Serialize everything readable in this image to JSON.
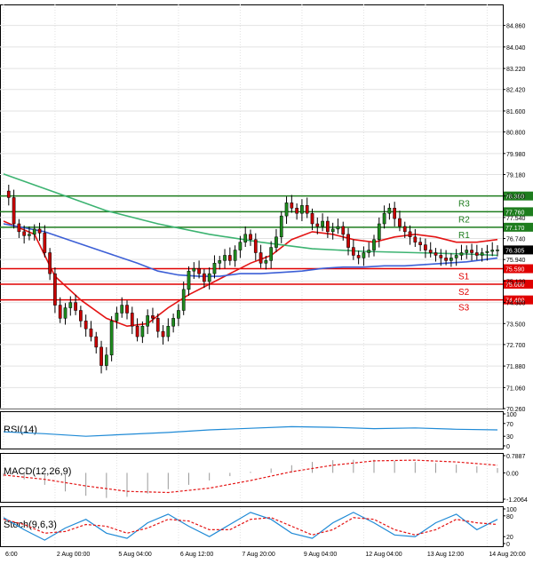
{
  "chart_data": {
    "type": "candlestick",
    "price_axis": {
      "range": [
        70.26,
        85.66
      ],
      "ticks": [
        "84.860",
        "84.040",
        "83.220",
        "82.420",
        "81.600",
        "80.800",
        "79.980",
        "79.180",
        "78.360",
        "77.540",
        "76.740",
        "75.940",
        "75.120",
        "74.300",
        "73.500",
        "72.700",
        "71.880",
        "71.060",
        "70.260"
      ]
    },
    "time_axis": {
      "labels": [
        {
          "text": "6:00",
          "t": 0
        },
        {
          "text": "2 Aug 00:00",
          "t": 10
        },
        {
          "text": "5 Aug 04:00",
          "t": 22
        },
        {
          "text": "6 Aug 12:00",
          "t": 34
        },
        {
          "text": "7 Aug 20:00",
          "t": 46
        },
        {
          "text": "9 Aug 04:00",
          "t": 58
        },
        {
          "text": "12 Aug 04:00",
          "t": 70
        },
        {
          "text": "13 Aug 12:00",
          "t": 82
        },
        {
          "text": "14 Aug 20:00",
          "t": 94
        }
      ],
      "count": 97
    },
    "current_price": {
      "label": "76.305",
      "value": 76.305
    },
    "levels": [
      {
        "name": "R3",
        "value": 78.36,
        "label": "78.360",
        "color": "#1e7d1e"
      },
      {
        "name": "R2",
        "value": 77.76,
        "label": "77.760",
        "color": "#1e7d1e"
      },
      {
        "name": "R1",
        "value": 77.17,
        "label": "77.170",
        "color": "#1e7d1e"
      },
      {
        "name": "S1",
        "value": 75.59,
        "label": "75.590",
        "color": "#e00000"
      },
      {
        "name": "S2",
        "value": 75.0,
        "label": "75.000",
        "color": "#e00000"
      },
      {
        "name": "S3",
        "value": 74.4,
        "label": "74.400",
        "color": "#e00000"
      }
    ],
    "key_points": [
      [
        0,
        78.55
      ],
      [
        1,
        78.3
      ],
      [
        2,
        77.3
      ],
      [
        3,
        77.0
      ],
      [
        4,
        76.85
      ],
      [
        5,
        76.9
      ],
      [
        6,
        77.1
      ],
      [
        7,
        76.95
      ],
      [
        8,
        76.2
      ],
      [
        9,
        75.4
      ],
      [
        10,
        74.2
      ],
      [
        11,
        73.7
      ],
      [
        12,
        74.1
      ],
      [
        13,
        74.3
      ],
      [
        14,
        74.0
      ],
      [
        15,
        73.6
      ],
      [
        16,
        73.3
      ],
      [
        17,
        73.0
      ],
      [
        18,
        72.6
      ],
      [
        19,
        71.9
      ],
      [
        20,
        72.3
      ],
      [
        21,
        73.6
      ],
      [
        22,
        73.9
      ],
      [
        23,
        74.2
      ],
      [
        24,
        73.9
      ],
      [
        25,
        73.4
      ],
      [
        26,
        73.0
      ],
      [
        27,
        73.4
      ],
      [
        28,
        73.8
      ],
      [
        29,
        73.7
      ],
      [
        30,
        73.2
      ],
      [
        31,
        73.0
      ],
      [
        32,
        73.4
      ],
      [
        33,
        73.7
      ],
      [
        34,
        74.0
      ],
      [
        35,
        74.8
      ],
      [
        36,
        75.5
      ],
      [
        37,
        75.6
      ],
      [
        38,
        75.4
      ],
      [
        39,
        75.1
      ],
      [
        40,
        75.4
      ],
      [
        41,
        75.8
      ],
      [
        42,
        75.9
      ],
      [
        43,
        76.1
      ],
      [
        44,
        75.9
      ],
      [
        45,
        76.3
      ],
      [
        46,
        76.6
      ],
      [
        47,
        76.9
      ],
      [
        48,
        76.7
      ],
      [
        49,
        76.2
      ],
      [
        50,
        75.8
      ],
      [
        51,
        75.9
      ],
      [
        52,
        76.4
      ],
      [
        53,
        76.8
      ],
      [
        54,
        77.6
      ],
      [
        55,
        78.1
      ],
      [
        56,
        77.9
      ],
      [
        57,
        77.7
      ],
      [
        58,
        78.0
      ],
      [
        59,
        77.7
      ],
      [
        60,
        77.3
      ],
      [
        61,
        77.2
      ],
      [
        62,
        77.4
      ],
      [
        63,
        77.0
      ],
      [
        64,
        77.1
      ],
      [
        65,
        77.2
      ],
      [
        66,
        76.9
      ],
      [
        67,
        76.4
      ],
      [
        68,
        76.1
      ],
      [
        69,
        76.0
      ],
      [
        70,
        76.2
      ],
      [
        71,
        76.3
      ],
      [
        72,
        76.7
      ],
      [
        73,
        77.3
      ],
      [
        74,
        77.7
      ],
      [
        75,
        77.9
      ],
      [
        76,
        77.5
      ],
      [
        77,
        77.2
      ],
      [
        78,
        77.0
      ],
      [
        79,
        76.8
      ],
      [
        80,
        76.6
      ],
      [
        81,
        76.5
      ],
      [
        82,
        76.3
      ],
      [
        83,
        76.2
      ],
      [
        84,
        76.1
      ],
      [
        85,
        76.0
      ],
      [
        86,
        75.9
      ],
      [
        87,
        76.0
      ],
      [
        88,
        76.1
      ],
      [
        89,
        76.2
      ],
      [
        90,
        76.3
      ],
      [
        91,
        76.2
      ],
      [
        92,
        76.1
      ],
      [
        93,
        76.2
      ],
      [
        94,
        76.25
      ],
      [
        95,
        76.3
      ],
      [
        96,
        76.305
      ]
    ],
    "overlays": [
      {
        "name": "MA-red",
        "color": "#e41414",
        "points": [
          [
            0,
            77.4
          ],
          [
            6,
            76.9
          ],
          [
            10,
            75.3
          ],
          [
            15,
            74.4
          ],
          [
            20,
            73.7
          ],
          [
            24,
            73.4
          ],
          [
            28,
            73.5
          ],
          [
            32,
            74.1
          ],
          [
            36,
            74.6
          ],
          [
            40,
            75.0
          ],
          [
            44,
            75.4
          ],
          [
            48,
            75.8
          ],
          [
            52,
            76.1
          ],
          [
            56,
            76.7
          ],
          [
            60,
            77.0
          ],
          [
            64,
            76.9
          ],
          [
            68,
            76.7
          ],
          [
            72,
            76.6
          ],
          [
            76,
            76.8
          ],
          [
            80,
            76.9
          ],
          [
            84,
            76.8
          ],
          [
            88,
            76.6
          ],
          [
            92,
            76.6
          ],
          [
            96,
            76.7
          ]
        ]
      },
      {
        "name": "MA-blue",
        "color": "#3c5fd6",
        "points": [
          [
            0,
            77.3
          ],
          [
            8,
            77.0
          ],
          [
            14,
            76.6
          ],
          [
            20,
            76.2
          ],
          [
            26,
            75.8
          ],
          [
            30,
            75.5
          ],
          [
            34,
            75.35
          ],
          [
            38,
            75.3
          ],
          [
            42,
            75.3
          ],
          [
            46,
            75.4
          ],
          [
            50,
            75.4
          ],
          [
            54,
            75.45
          ],
          [
            58,
            75.5
          ],
          [
            62,
            75.6
          ],
          [
            66,
            75.65
          ],
          [
            70,
            75.65
          ],
          [
            74,
            75.7
          ],
          [
            78,
            75.7
          ],
          [
            82,
            75.75
          ],
          [
            86,
            75.8
          ],
          [
            90,
            75.85
          ],
          [
            94,
            75.95
          ],
          [
            96,
            76.0
          ]
        ]
      },
      {
        "name": "MA-green",
        "color": "#3cb371",
        "points": [
          [
            0,
            79.2
          ],
          [
            10,
            78.5
          ],
          [
            20,
            77.8
          ],
          [
            30,
            77.3
          ],
          [
            40,
            76.9
          ],
          [
            50,
            76.6
          ],
          [
            60,
            76.35
          ],
          [
            70,
            76.25
          ],
          [
            80,
            76.2
          ],
          [
            90,
            76.15
          ],
          [
            96,
            76.1
          ]
        ]
      }
    ],
    "indicators": [
      {
        "name": "RSI(14)",
        "ticks": [
          "100",
          "70",
          "30",
          "0"
        ],
        "range": [
          0,
          100
        ],
        "points": [
          [
            0,
            44
          ],
          [
            8,
            38
          ],
          [
            16,
            30
          ],
          [
            24,
            36
          ],
          [
            32,
            42
          ],
          [
            40,
            50
          ],
          [
            48,
            55
          ],
          [
            56,
            60
          ],
          [
            64,
            58
          ],
          [
            72,
            54
          ],
          [
            80,
            56
          ],
          [
            88,
            52
          ],
          [
            96,
            50
          ]
        ]
      },
      {
        "name": "MACD(12,26,9)",
        "ticks": [
          "0.7887",
          "0.00",
          "-1.2064"
        ],
        "range": [
          -1.2064,
          0.7887
        ],
        "histogram": [
          [
            0,
            -0.15
          ],
          [
            4,
            -0.3
          ],
          [
            8,
            -0.55
          ],
          [
            12,
            -0.85
          ],
          [
            16,
            -1.05
          ],
          [
            20,
            -1.15
          ],
          [
            24,
            -1.1
          ],
          [
            28,
            -0.95
          ],
          [
            32,
            -0.75
          ],
          [
            36,
            -0.55
          ],
          [
            40,
            -0.35
          ],
          [
            44,
            -0.15
          ],
          [
            48,
            0.05
          ],
          [
            52,
            0.2
          ],
          [
            56,
            0.35
          ],
          [
            60,
            0.5
          ],
          [
            64,
            0.58
          ],
          [
            68,
            0.6
          ],
          [
            72,
            0.6
          ],
          [
            76,
            0.55
          ],
          [
            80,
            0.5
          ],
          [
            84,
            0.45
          ],
          [
            88,
            0.38
          ],
          [
            92,
            0.3
          ],
          [
            96,
            0.22
          ]
        ],
        "signal": [
          [
            0,
            -0.1
          ],
          [
            8,
            -0.3
          ],
          [
            16,
            -0.6
          ],
          [
            24,
            -0.85
          ],
          [
            32,
            -0.9
          ],
          [
            40,
            -0.7
          ],
          [
            48,
            -0.35
          ],
          [
            56,
            0.05
          ],
          [
            64,
            0.35
          ],
          [
            72,
            0.55
          ],
          [
            80,
            0.58
          ],
          [
            88,
            0.5
          ],
          [
            96,
            0.35
          ]
        ]
      },
      {
        "name": "Stoch(9,6,3)",
        "ticks": [
          "100",
          "80",
          "20",
          "0"
        ],
        "range": [
          0,
          100
        ],
        "k": [
          [
            0,
            75
          ],
          [
            4,
            40
          ],
          [
            8,
            10
          ],
          [
            12,
            45
          ],
          [
            16,
            70
          ],
          [
            20,
            30
          ],
          [
            24,
            15
          ],
          [
            28,
            60
          ],
          [
            32,
            85
          ],
          [
            36,
            50
          ],
          [
            40,
            20
          ],
          [
            44,
            55
          ],
          [
            48,
            90
          ],
          [
            52,
            70
          ],
          [
            56,
            30
          ],
          [
            60,
            15
          ],
          [
            64,
            60
          ],
          [
            68,
            90
          ],
          [
            72,
            60
          ],
          [
            76,
            25
          ],
          [
            80,
            20
          ],
          [
            84,
            60
          ],
          [
            88,
            85
          ],
          [
            92,
            40
          ],
          [
            96,
            70
          ]
        ],
        "d": [
          [
            0,
            70
          ],
          [
            4,
            55
          ],
          [
            8,
            30
          ],
          [
            12,
            35
          ],
          [
            16,
            55
          ],
          [
            20,
            50
          ],
          [
            24,
            30
          ],
          [
            28,
            45
          ],
          [
            32,
            70
          ],
          [
            36,
            65
          ],
          [
            40,
            40
          ],
          [
            44,
            40
          ],
          [
            48,
            70
          ],
          [
            52,
            75
          ],
          [
            56,
            50
          ],
          [
            60,
            25
          ],
          [
            64,
            40
          ],
          [
            68,
            75
          ],
          [
            72,
            70
          ],
          [
            76,
            40
          ],
          [
            80,
            25
          ],
          [
            84,
            40
          ],
          [
            88,
            70
          ],
          [
            92,
            60
          ],
          [
            96,
            55
          ]
        ]
      }
    ]
  }
}
